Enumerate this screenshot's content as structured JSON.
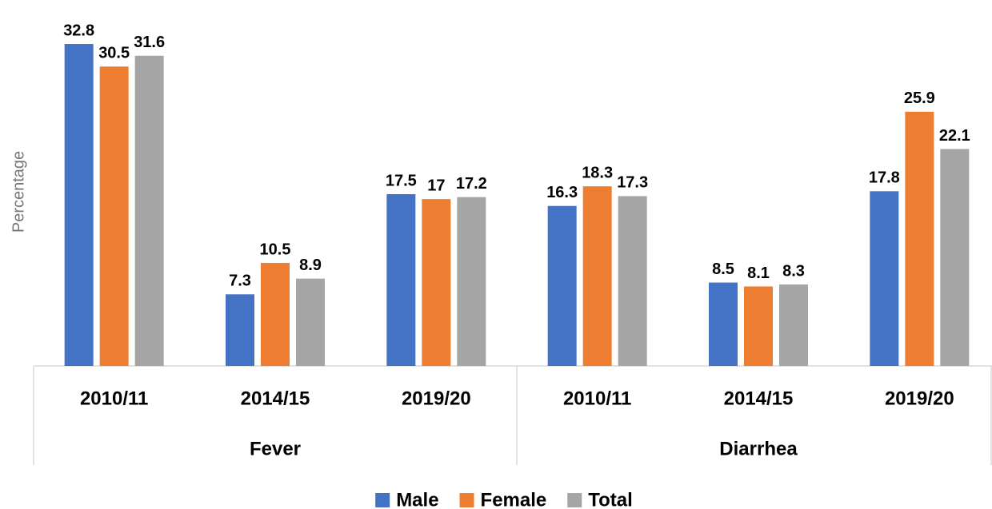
{
  "chart_data": {
    "type": "bar",
    "y_label": "Percentage",
    "groups": [
      {
        "label": "Fever",
        "categories": [
          "2010/11",
          "2014/15",
          "2019/20"
        ]
      },
      {
        "label": "Diarrhea",
        "categories": [
          "2010/11",
          "2014/15",
          "2019/20"
        ]
      }
    ],
    "series": [
      {
        "name": "Male",
        "color": "#4472c4",
        "values": [
          32.8,
          7.3,
          17.5,
          16.3,
          8.5,
          17.8
        ]
      },
      {
        "name": "Female",
        "color": "#ed7d31",
        "values": [
          30.5,
          10.5,
          17,
          18.3,
          8.1,
          25.9
        ]
      },
      {
        "name": "Total",
        "color": "#a5a5a5",
        "values": [
          31.6,
          8.9,
          17.2,
          17.3,
          8.3,
          22.1
        ]
      }
    ],
    "ylim": [
      0,
      35
    ],
    "legend": "bottom"
  }
}
